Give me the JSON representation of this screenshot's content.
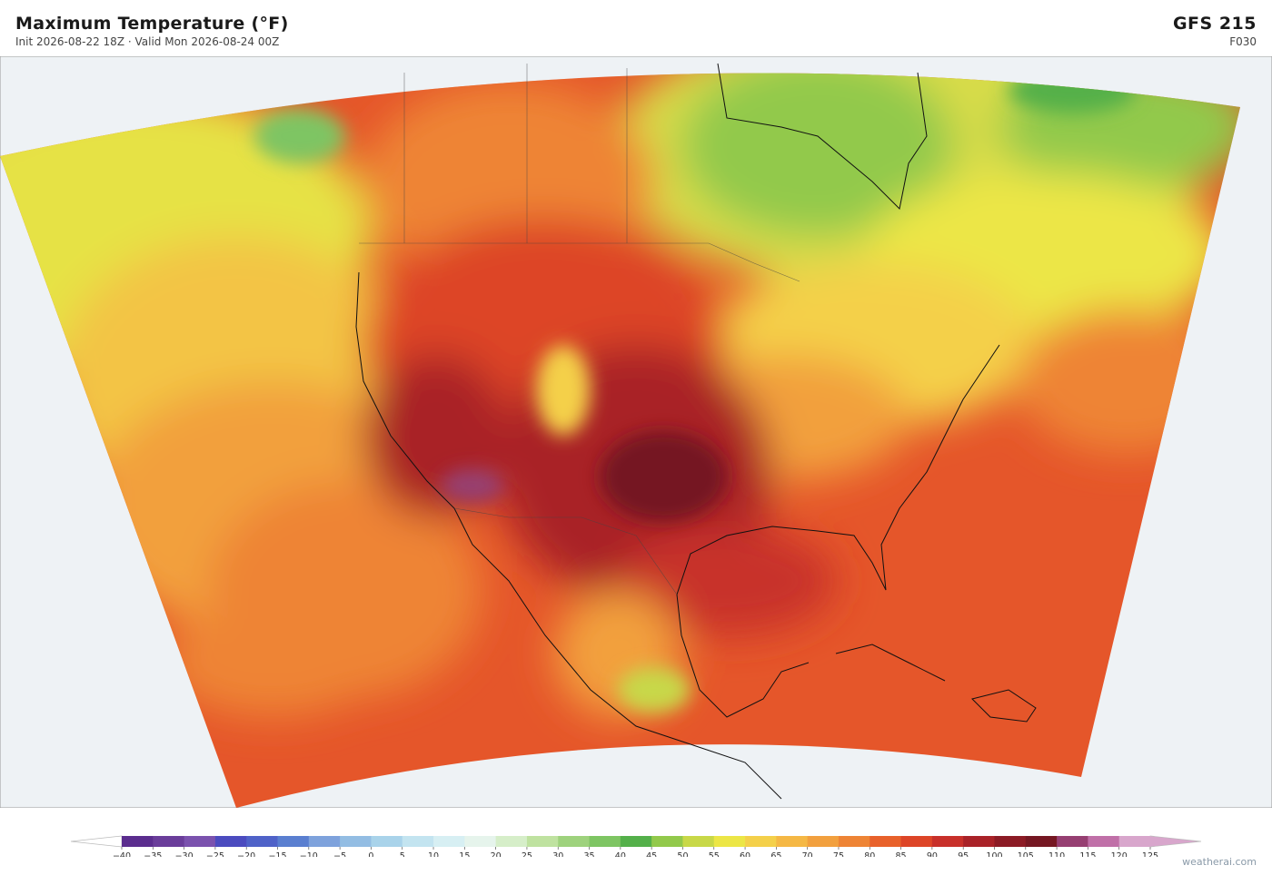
{
  "header": {
    "title": "Maximum Temperature  (°F)",
    "subtitle": "Init 2026-08-22 18Z   ·   Valid Mon 2026-08-24 00Z",
    "model": "GFS  215",
    "forecast_hour": "F030"
  },
  "colorbar": {
    "ticks": [
      {
        "value": -40,
        "label": "−40"
      },
      {
        "value": -35,
        "label": "−35"
      },
      {
        "value": -30,
        "label": "−30"
      },
      {
        "value": -25,
        "label": "−25"
      },
      {
        "value": -20,
        "label": "−20"
      },
      {
        "value": -15,
        "label": "−15"
      },
      {
        "value": -10,
        "label": "−10"
      },
      {
        "value": -5,
        "label": "−5"
      },
      0,
      5,
      10,
      15,
      20,
      25,
      30,
      35,
      40,
      45,
      50,
      55,
      60,
      65,
      70,
      75,
      80,
      85,
      90,
      95,
      100,
      105,
      110,
      115,
      120,
      125
    ],
    "colors": [
      "#5b2d8e",
      "#6a3d9a",
      "#7b52ae",
      "#4b4bbf",
      "#4f62c8",
      "#5a7fd0",
      "#7ea2dc",
      "#93bde3",
      "#a9d3ea",
      "#c3e4f0",
      "#d7eff3",
      "#e6f4ec",
      "#d6eec9",
      "#bfe2a0",
      "#9ed27d",
      "#7ec563",
      "#54b04a",
      "#92c94b",
      "#c8d848",
      "#ece646",
      "#f4d04a",
      "#f5b845",
      "#f2a03e",
      "#ee8435",
      "#e8612b",
      "#dd4527",
      "#c8302a",
      "#a92228",
      "#8c1b25",
      "#751722",
      "#963f72",
      "#c070a8",
      "#d8a6cc"
    ]
  },
  "credit": "weatherai.com"
}
